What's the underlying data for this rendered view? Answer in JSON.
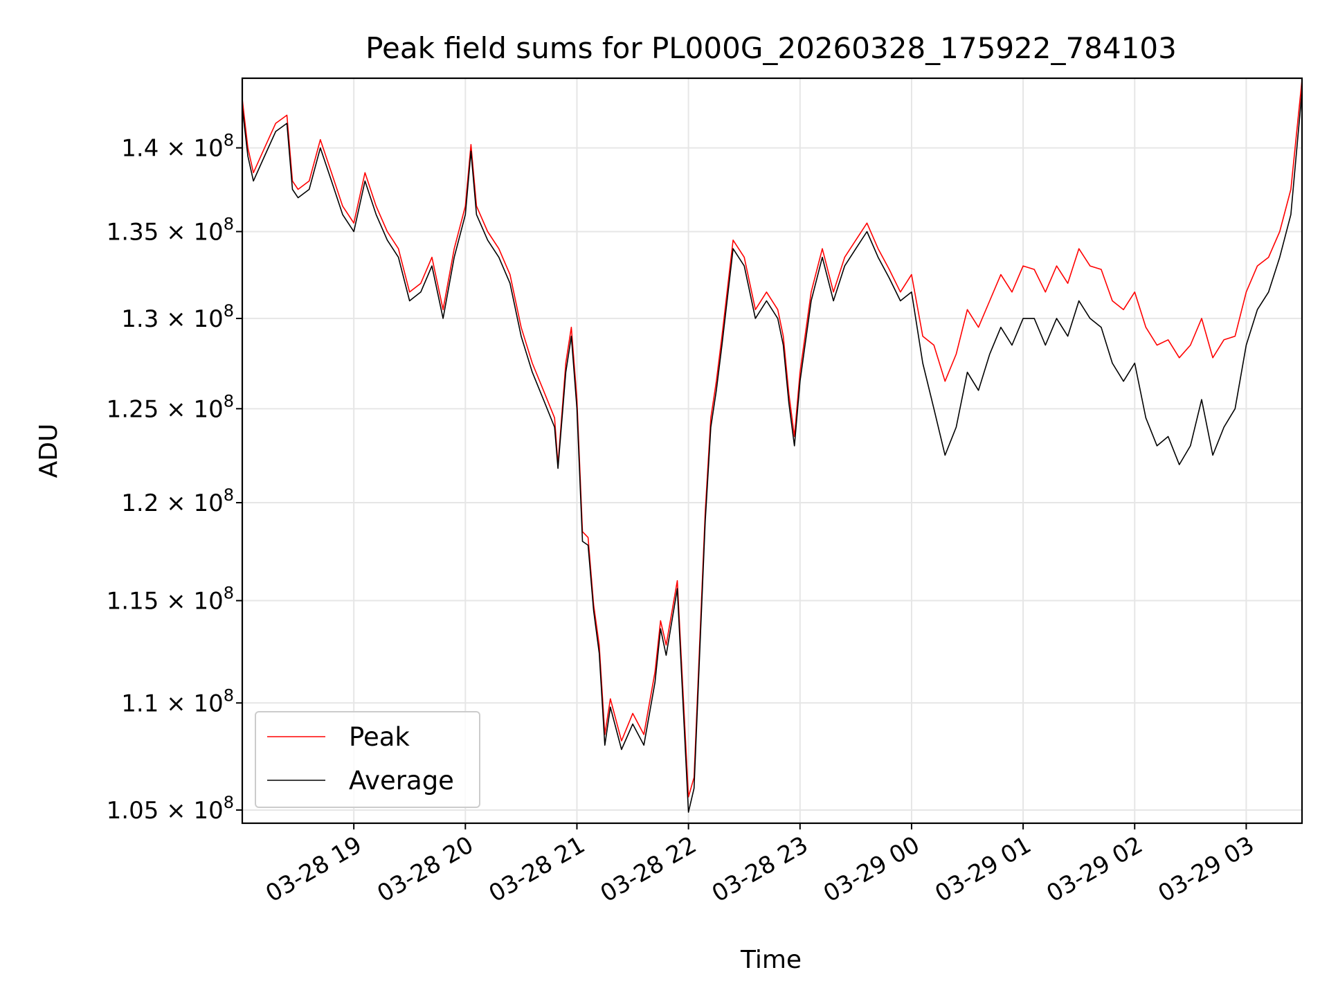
{
  "chart_data": {
    "type": "line",
    "title": "Peak field sums for PL000G_20260328_175922_784103",
    "xlabel": "Time",
    "ylabel": "ADU",
    "y_scale": "log",
    "ylim": [
      104400000,
      144300000
    ],
    "xlim_hours": [
      18.0,
      27.5
    ],
    "grid": true,
    "legend_location": "lower-left",
    "y_ticks": [
      {
        "value": 105000000,
        "mantissa": "1.05"
      },
      {
        "value": 110000000,
        "mantissa": "1.1"
      },
      {
        "value": 115000000,
        "mantissa": "1.15"
      },
      {
        "value": 120000000,
        "mantissa": "1.2"
      },
      {
        "value": 125000000,
        "mantissa": "1.25"
      },
      {
        "value": 130000000,
        "mantissa": "1.3"
      },
      {
        "value": 135000000,
        "mantissa": "1.35"
      },
      {
        "value": 140000000,
        "mantissa": "1.4"
      }
    ],
    "y_tick_times": "× 10",
    "y_tick_exponent": "8",
    "x_ticks": [
      {
        "hour": 19,
        "label": "03-28 19"
      },
      {
        "hour": 20,
        "label": "03-28 20"
      },
      {
        "hour": 21,
        "label": "03-28 21"
      },
      {
        "hour": 22,
        "label": "03-28 22"
      },
      {
        "hour": 23,
        "label": "03-28 23"
      },
      {
        "hour": 24,
        "label": "03-29 00"
      },
      {
        "hour": 25,
        "label": "03-29 01"
      },
      {
        "hour": 26,
        "label": "03-29 02"
      },
      {
        "hour": 27,
        "label": "03-29 03"
      }
    ],
    "series": [
      {
        "name": "Peak",
        "color": "#ff0000",
        "hours": [
          18.0,
          18.05,
          18.1,
          18.2,
          18.3,
          18.4,
          18.45,
          18.5,
          18.6,
          18.7,
          18.8,
          18.9,
          19.0,
          19.1,
          19.2,
          19.3,
          19.4,
          19.5,
          19.6,
          19.7,
          19.8,
          19.9,
          20.0,
          20.05,
          20.1,
          20.2,
          20.3,
          20.4,
          20.5,
          20.6,
          20.7,
          20.8,
          20.83,
          20.9,
          20.95,
          21.0,
          21.05,
          21.1,
          21.15,
          21.2,
          21.25,
          21.3,
          21.4,
          21.5,
          21.6,
          21.7,
          21.75,
          21.8,
          21.9,
          22.0,
          22.05,
          22.1,
          22.15,
          22.2,
          22.25,
          22.3,
          22.4,
          22.5,
          22.6,
          22.7,
          22.8,
          22.85,
          22.9,
          22.95,
          23.0,
          23.1,
          23.2,
          23.3,
          23.4,
          23.5,
          23.6,
          23.7,
          23.8,
          23.9,
          24.0,
          24.1,
          24.2,
          24.3,
          24.4,
          24.5,
          24.6,
          24.7,
          24.8,
          24.9,
          25.0,
          25.1,
          25.2,
          25.3,
          25.4,
          25.5,
          25.6,
          25.7,
          25.8,
          25.9,
          26.0,
          26.1,
          26.2,
          26.3,
          26.4,
          26.5,
          26.6,
          26.7,
          26.8,
          26.9,
          27.0,
          27.1,
          27.2,
          27.3,
          27.4,
          27.5
        ],
        "values": [
          143000000,
          140000000,
          138500000,
          140000000,
          141500000,
          142000000,
          138000000,
          137500000,
          138000000,
          140500000,
          138500000,
          136500000,
          135500000,
          138500000,
          136500000,
          135000000,
          134000000,
          131500000,
          132000000,
          133500000,
          130500000,
          134000000,
          136500000,
          140200000,
          136500000,
          135000000,
          134000000,
          132500000,
          129500000,
          127500000,
          126000000,
          124500000,
          122000000,
          127500000,
          129500000,
          125500000,
          118500000,
          118200000,
          114800000,
          112800000,
          108500000,
          110200000,
          108200000,
          109500000,
          108500000,
          111500000,
          114000000,
          112800000,
          116000000,
          105600000,
          106500000,
          112800000,
          119500000,
          124500000,
          126500000,
          129000000,
          134500000,
          133500000,
          130500000,
          131500000,
          130500000,
          129000000,
          125800000,
          123500000,
          127000000,
          131500000,
          134000000,
          131500000,
          133500000,
          134500000,
          135500000,
          134000000,
          132800000,
          131500000,
          132500000,
          129000000,
          128500000,
          126500000,
          128000000,
          130500000,
          129500000,
          131000000,
          132500000,
          131500000,
          133000000,
          132800000,
          131500000,
          133000000,
          132000000,
          134000000,
          133000000,
          132800000,
          131000000,
          130500000,
          131500000,
          129500000,
          128500000,
          128800000,
          127800000,
          128500000,
          130000000,
          127800000,
          128800000,
          129000000,
          131500000,
          133000000,
          133500000,
          135000000,
          137500000,
          144200000
        ]
      },
      {
        "name": "Average",
        "color": "#000000",
        "hours": [
          18.0,
          18.05,
          18.1,
          18.2,
          18.3,
          18.4,
          18.45,
          18.5,
          18.6,
          18.7,
          18.8,
          18.9,
          19.0,
          19.1,
          19.2,
          19.3,
          19.4,
          19.5,
          19.6,
          19.7,
          19.8,
          19.9,
          20.0,
          20.05,
          20.1,
          20.2,
          20.3,
          20.4,
          20.5,
          20.6,
          20.7,
          20.8,
          20.83,
          20.9,
          20.95,
          21.0,
          21.05,
          21.1,
          21.15,
          21.2,
          21.25,
          21.3,
          21.4,
          21.5,
          21.6,
          21.7,
          21.75,
          21.8,
          21.9,
          22.0,
          22.05,
          22.1,
          22.15,
          22.2,
          22.25,
          22.3,
          22.4,
          22.5,
          22.6,
          22.7,
          22.8,
          22.85,
          22.9,
          22.95,
          23.0,
          23.1,
          23.2,
          23.3,
          23.4,
          23.5,
          23.6,
          23.7,
          23.8,
          23.9,
          24.0,
          24.1,
          24.2,
          24.3,
          24.4,
          24.5,
          24.6,
          24.7,
          24.8,
          24.9,
          25.0,
          25.1,
          25.2,
          25.3,
          25.4,
          25.5,
          25.6,
          25.7,
          25.8,
          25.9,
          26.0,
          26.1,
          26.2,
          26.3,
          26.4,
          26.5,
          26.6,
          26.7,
          26.8,
          26.9,
          27.0,
          27.1,
          27.2,
          27.3,
          27.4,
          27.5
        ],
        "values": [
          142500000,
          139500000,
          138000000,
          139500000,
          141000000,
          141500000,
          137500000,
          137000000,
          137500000,
          140000000,
          138000000,
          136000000,
          135000000,
          138000000,
          136000000,
          134500000,
          133500000,
          131000000,
          131500000,
          133000000,
          130000000,
          133500000,
          136000000,
          139800000,
          136000000,
          134500000,
          133500000,
          132000000,
          129000000,
          127000000,
          125500000,
          124000000,
          121800000,
          127000000,
          129000000,
          125000000,
          118000000,
          117800000,
          114500000,
          112400000,
          108000000,
          109800000,
          107800000,
          109000000,
          108000000,
          111000000,
          113600000,
          112300000,
          115600000,
          104900000,
          106000000,
          112300000,
          119000000,
          124000000,
          126000000,
          128500000,
          134000000,
          133000000,
          130000000,
          131000000,
          130000000,
          128500000,
          125300000,
          123000000,
          126500000,
          131000000,
          133500000,
          131000000,
          133000000,
          134000000,
          135000000,
          133500000,
          132300000,
          131000000,
          131500000,
          127500000,
          125000000,
          122500000,
          124000000,
          127000000,
          126000000,
          128000000,
          129500000,
          128500000,
          130000000,
          130000000,
          128500000,
          130000000,
          129000000,
          131000000,
          130000000,
          129500000,
          127500000,
          126500000,
          127500000,
          124500000,
          123000000,
          123500000,
          122000000,
          123000000,
          125500000,
          122500000,
          124000000,
          125000000,
          128500000,
          130500000,
          131500000,
          133500000,
          136000000,
          143500000
        ]
      }
    ]
  }
}
